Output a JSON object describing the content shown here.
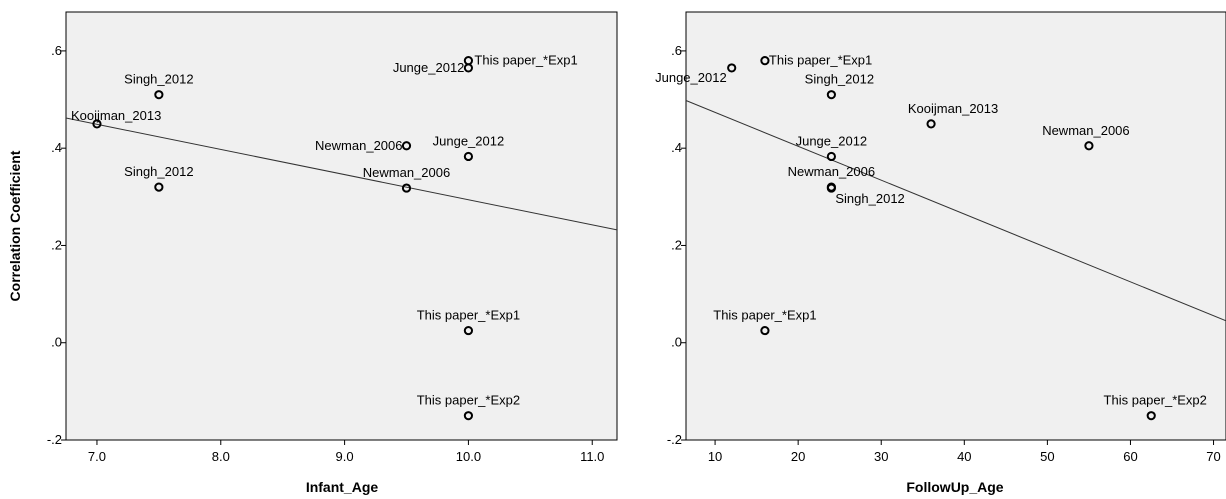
{
  "chart_data": [
    {
      "type": "scatter",
      "xlabel": "Infant_Age",
      "ylabel": "Correlation Coefficient",
      "xlim": [
        6.75,
        11.2
      ],
      "ylim": [
        -0.2,
        0.68
      ],
      "x_ticks": [
        7.0,
        8.0,
        9.0,
        10.0,
        11.0
      ],
      "x_tick_labels": [
        "7.0",
        "8.0",
        "9.0",
        "10.0",
        "11.0"
      ],
      "y_ticks": [
        -0.2,
        0.0,
        0.2,
        0.4,
        0.6
      ],
      "y_tick_labels": [
        "-.2",
        ".0",
        ".2",
        ".4",
        ".6"
      ],
      "points": [
        {
          "x": 7.0,
          "y": 0.45,
          "label": "Kooijman_2013"
        },
        {
          "x": 7.5,
          "y": 0.51,
          "label": "Singh_2012"
        },
        {
          "x": 7.5,
          "y": 0.32,
          "label": "Singh_2012"
        },
        {
          "x": 9.5,
          "y": 0.405,
          "label": "Newman_2006"
        },
        {
          "x": 9.5,
          "y": 0.318,
          "label": "Newman_2006"
        },
        {
          "x": 10.0,
          "y": 0.58,
          "label": "This paper_*Exp1"
        },
        {
          "x": 10.0,
          "y": 0.565,
          "label": "Junge_2012"
        },
        {
          "x": 10.0,
          "y": 0.383,
          "label": "Junge_2012"
        },
        {
          "x": 10.0,
          "y": 0.025,
          "label": "This paper_*Exp1"
        },
        {
          "x": 10.0,
          "y": -0.15,
          "label": "This paper_*Exp2"
        }
      ],
      "fit_line": {
        "x": [
          6.75,
          11.2
        ],
        "y": [
          0.462,
          0.232
        ]
      }
    },
    {
      "type": "scatter",
      "xlabel": "FollowUp_Age",
      "ylabel": "",
      "xlim": [
        6.5,
        71.5
      ],
      "ylim": [
        -0.2,
        0.68
      ],
      "x_ticks": [
        10,
        20,
        30,
        40,
        50,
        60,
        70
      ],
      "x_tick_labels": [
        "10",
        "20",
        "30",
        "40",
        "50",
        "60",
        "70"
      ],
      "y_ticks": [
        -0.2,
        0.0,
        0.2,
        0.4,
        0.6
      ],
      "y_tick_labels": [
        "-.2",
        ".0",
        ".2",
        ".4",
        ".6"
      ],
      "points": [
        {
          "x": 12,
          "y": 0.565,
          "label": "Junge_2012"
        },
        {
          "x": 16,
          "y": 0.58,
          "label": "This paper_*Exp1"
        },
        {
          "x": 24,
          "y": 0.51,
          "label": "Singh_2012"
        },
        {
          "x": 36,
          "y": 0.45,
          "label": "Kooijman_2013"
        },
        {
          "x": 55,
          "y": 0.405,
          "label": "Newman_2006"
        },
        {
          "x": 24,
          "y": 0.383,
          "label": "Junge_2012"
        },
        {
          "x": 24,
          "y": 0.32,
          "label": "Newman_2006"
        },
        {
          "x": 24,
          "y": 0.318,
          "label": "Singh_2012"
        },
        {
          "x": 16,
          "y": 0.025,
          "label": "This paper_*Exp1"
        },
        {
          "x": 62.5,
          "y": -0.15,
          "label": "This paper_*Exp2"
        }
      ],
      "fit_line": {
        "x": [
          6.5,
          71.5
        ],
        "y": [
          0.498,
          0.045
        ]
      }
    }
  ]
}
